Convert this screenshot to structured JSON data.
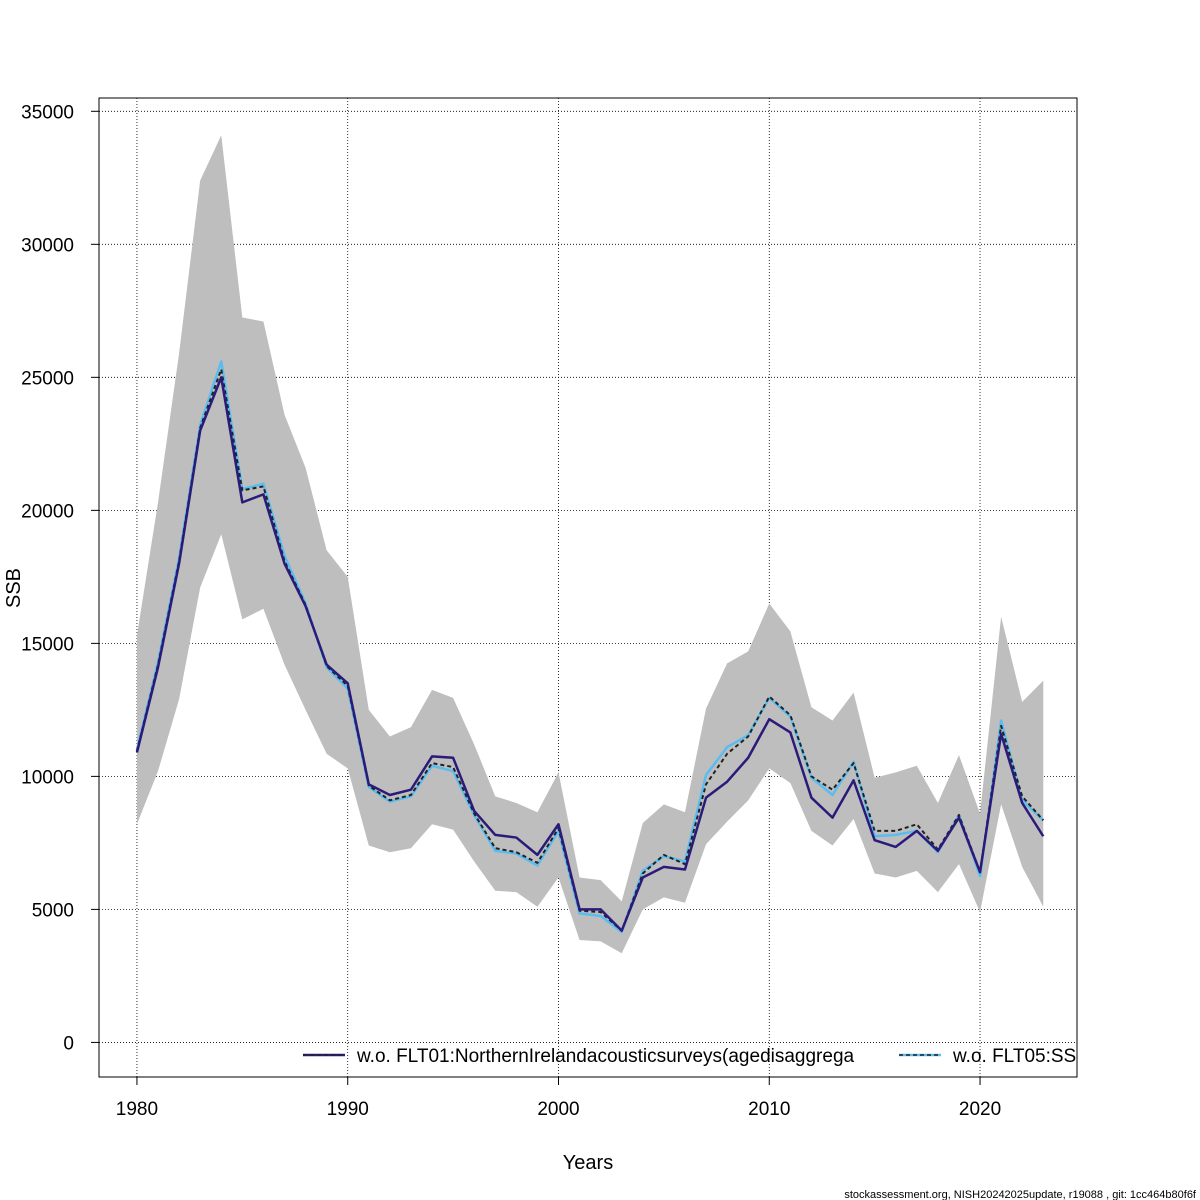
{
  "chart_data": {
    "type": "line",
    "xlabel": "Years",
    "ylabel": "SSB",
    "xlim": [
      1978.2,
      1981.4
    ],
    "ylim": [
      -1300,
      35500
    ],
    "x_ticks": [
      1980,
      1990,
      2000,
      2010,
      2020
    ],
    "y_ticks": [
      0,
      5000,
      10000,
      15000,
      20000,
      25000,
      30000,
      35000
    ],
    "grid": true,
    "years": [
      1980,
      1981,
      1982,
      1983,
      1984,
      1985,
      1986,
      1987,
      1988,
      1989,
      1990,
      1991,
      1992,
      1993,
      1994,
      1995,
      1996,
      1997,
      1998,
      1999,
      2000,
      2001,
      2002,
      2003,
      2004,
      2005,
      2006,
      2007,
      2008,
      2009,
      2010,
      2011,
      2012,
      2013,
      2014,
      2015,
      2016,
      2017,
      2018,
      2019,
      2020,
      2021,
      2022,
      2023
    ],
    "confidence_band": {
      "color": "#bebebe",
      "upper": [
        15300,
        20300,
        25900,
        32400,
        34100,
        27250,
        27100,
        23600,
        21600,
        18500,
        17500,
        12500,
        11500,
        11850,
        13250,
        12950,
        11200,
        9250,
        9000,
        8650,
        10150,
        6200,
        6100,
        5300,
        8250,
        8950,
        8650,
        12550,
        14250,
        14700,
        16500,
        15450,
        12600,
        12100,
        13150,
        9950,
        10150,
        10400,
        9000,
        10800,
        8600,
        16000,
        12800,
        13600
      ],
      "lower": [
        8200,
        10200,
        12900,
        17100,
        19100,
        15900,
        16300,
        14200,
        12500,
        10850,
        10300,
        7400,
        7150,
        7300,
        8200,
        8000,
        6800,
        5700,
        5650,
        5100,
        6200,
        3850,
        3800,
        3350,
        5000,
        5450,
        5250,
        7450,
        8300,
        9100,
        10300,
        9750,
        7950,
        7400,
        8400,
        6350,
        6200,
        6450,
        5650,
        6700,
        4900,
        8950,
        6600,
        5100
      ]
    },
    "series": [
      {
        "name": "w.o. FLT01:NorthernIrelandacousticsurveys(agedisaggrega",
        "color": "#2b1a7a",
        "style": "solid",
        "values": [
          10900,
          14100,
          18000,
          23000,
          25000,
          20300,
          20600,
          18000,
          16400,
          14200,
          13500,
          9700,
          9300,
          9500,
          10750,
          10700,
          8700,
          7800,
          7700,
          7050,
          8200,
          5000,
          5000,
          4200,
          6200,
          6600,
          6500,
          9200,
          9800,
          10700,
          12150,
          11650,
          9200,
          8450,
          9850,
          7600,
          7350,
          7950,
          7200,
          8450,
          6400,
          11600,
          9000,
          7750
        ]
      },
      {
        "name": "w.o. FLT05:SS",
        "color": "#5bbcf0",
        "style": "solid",
        "values": [
          11000,
          14300,
          18200,
          23200,
          25600,
          20800,
          21000,
          18300,
          16500,
          14100,
          13300,
          9600,
          9050,
          9250,
          10400,
          10200,
          8550,
          7200,
          7100,
          6650,
          7950,
          4850,
          4750,
          4150,
          6450,
          7000,
          6800,
          10050,
          11100,
          11550,
          12950,
          12250,
          9950,
          9300,
          10550,
          7750,
          7800,
          7950,
          7150,
          8550,
          6250,
          12100,
          9100,
          8350
        ]
      },
      {
        "name": "",
        "color": "#222222",
        "style": "dashed",
        "values": [
          10950,
          14200,
          18100,
          23100,
          25300,
          20750,
          20900,
          18100,
          16450,
          14150,
          13400,
          9650,
          9100,
          9300,
          10500,
          10350,
          8600,
          7300,
          7150,
          6750,
          8050,
          4950,
          4900,
          4200,
          6350,
          7050,
          6700,
          9700,
          10850,
          11500,
          13000,
          12300,
          10000,
          9500,
          10500,
          7950,
          7950,
          8200,
          7250,
          8550,
          6400,
          11900,
          9250,
          8350
        ]
      }
    ],
    "legend": [
      {
        "label": "w.o. FLT01:NorthernIrelandacousticsurveys(agedisaggrega",
        "color": "#2b1a7a",
        "dash_color": "#222222"
      },
      {
        "label": "w.o. FLT05:SS",
        "color": "#5bbcf0",
        "dash_color": "#222222"
      }
    ],
    "legend_position": "bottom"
  },
  "footer": "stockassessment.org, NISH20242025update, r19088 , git: 1cc464b80f6f"
}
